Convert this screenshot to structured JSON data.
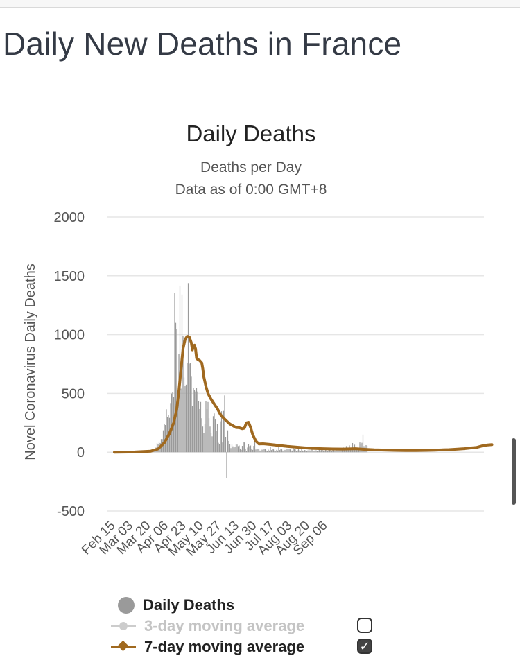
{
  "page": {
    "title": "Daily New Deaths in France"
  },
  "chart_data": {
    "type": "bar",
    "title": "Daily Deaths",
    "subtitle_lines": [
      "Deaths per Day",
      "Data as of 0:00 GMT+8"
    ],
    "xlabel": "",
    "ylabel": "Novel Coronavirus Daily Deaths",
    "ylim": [
      -500,
      2000
    ],
    "yticks": [
      2000,
      1500,
      1000,
      500,
      0,
      -500
    ],
    "grid": true,
    "x_tick_labels": [
      "Feb 15",
      "Mar 03",
      "Mar 20",
      "Apr 06",
      "Apr 23",
      "May 10",
      "May 27",
      "Jun 13",
      "Jun 30",
      "Jul 17",
      "Aug 03",
      "Aug 20",
      "Sep 06"
    ],
    "x_start": "Feb 15",
    "legend_position": "bottom",
    "colors": {
      "bars": "#9a9a9a",
      "avg3": "#c8c8c8",
      "avg7": "#a0691f",
      "grid": "#e6e6e6"
    },
    "series": [
      {
        "name": "Daily Deaths",
        "kind": "bar",
        "values": [
          0,
          0,
          0,
          0,
          0,
          0,
          0,
          0,
          0,
          0,
          0,
          0,
          0,
          0,
          0,
          0,
          0,
          0,
          0,
          0,
          0,
          0,
          0,
          0,
          0,
          0,
          2,
          0,
          2,
          1,
          3,
          3,
          5,
          4,
          8,
          10,
          15,
          21,
          12,
          30,
          40,
          78,
          71,
          91,
          78,
          112,
          112,
          186,
          240,
          231,
          365,
          299,
          319,
          292,
          418,
          499,
          509,
          471,
          1355,
          1100,
          1050,
          518,
          833,
          1417,
          541,
          1341,
          987,
          635,
          561,
          574,
          762,
          1438,
          753,
          761,
          642,
          395,
          547,
          531,
          516,
          544,
          516,
          437,
          367,
          427,
          289,
          218,
          166,
          243,
          437,
          367,
          427,
          289,
          218,
          166,
          135,
          306,
          330,
          278,
          178,
          243,
          80,
          70,
          263,
          348,
          83,
          351,
          483,
          131,
          -217,
          186,
          96,
          66,
          35,
          65,
          50,
          35,
          43,
          66,
          65,
          52,
          57,
          31,
          20,
          54,
          87,
          83,
          31,
          13,
          40,
          66,
          52,
          57,
          31,
          20,
          54,
          111,
          23,
          30,
          29,
          28,
          14,
          11,
          22,
          18,
          29,
          28,
          14,
          11,
          22,
          14,
          44,
          18,
          25,
          24,
          14,
          6,
          20,
          14,
          44,
          18,
          25,
          24,
          14,
          6,
          20,
          14,
          30,
          15,
          25,
          24,
          14,
          14,
          56,
          30,
          23,
          13,
          15,
          30,
          15,
          12,
          25,
          14,
          7,
          18,
          16,
          13,
          15,
          30,
          15,
          12,
          25,
          14,
          7,
          18,
          16,
          13,
          15,
          30,
          15,
          18,
          25,
          14,
          8,
          18,
          16,
          13,
          16,
          26,
          24,
          10,
          30,
          25,
          14,
          22,
          18,
          13,
          23,
          28,
          25,
          35,
          41,
          24,
          33,
          52,
          30,
          29,
          58,
          35,
          40,
          78,
          33,
          64,
          30,
          38,
          35,
          38,
          83,
          66,
          80,
          150,
          52,
          40,
          60,
          55
        ]
      },
      {
        "name": "3-day moving average",
        "kind": "line",
        "visible": false
      },
      {
        "name": "7-day moving average",
        "kind": "line",
        "points": [
          [
            0,
            0
          ],
          [
            20,
            2
          ],
          [
            35,
            9
          ],
          [
            42,
            28
          ],
          [
            48,
            80
          ],
          [
            53,
            160
          ],
          [
            57,
            250
          ],
          [
            60,
            370
          ],
          [
            62,
            520
          ],
          [
            64,
            700
          ],
          [
            66,
            880
          ],
          [
            68,
            960
          ],
          [
            70,
            985
          ],
          [
            72,
            980
          ],
          [
            74,
            930
          ],
          [
            75,
            870
          ],
          [
            76,
            905
          ],
          [
            77,
            910
          ],
          [
            78,
            880
          ],
          [
            79,
            800
          ],
          [
            80,
            790
          ],
          [
            82,
            780
          ],
          [
            84,
            760
          ],
          [
            85,
            710
          ],
          [
            86,
            640
          ],
          [
            88,
            560
          ],
          [
            90,
            500
          ],
          [
            93,
            450
          ],
          [
            96,
            410
          ],
          [
            99,
            370
          ],
          [
            102,
            320
          ],
          [
            105,
            290
          ],
          [
            108,
            265
          ],
          [
            111,
            240
          ],
          [
            114,
            225
          ],
          [
            117,
            210
          ],
          [
            120,
            208
          ],
          [
            123,
            200
          ],
          [
            125,
            205
          ],
          [
            127,
            250
          ],
          [
            129,
            255
          ],
          [
            131,
            210
          ],
          [
            133,
            150
          ],
          [
            136,
            95
          ],
          [
            139,
            70
          ],
          [
            143,
            72
          ],
          [
            150,
            66
          ],
          [
            158,
            58
          ],
          [
            166,
            50
          ],
          [
            174,
            44
          ],
          [
            182,
            38
          ],
          [
            190,
            33
          ],
          [
            200,
            30
          ],
          [
            210,
            28
          ],
          [
            220,
            27
          ],
          [
            232,
            30
          ],
          [
            240,
            25
          ],
          [
            250,
            20
          ],
          [
            260,
            18
          ],
          [
            270,
            16
          ],
          [
            280,
            14
          ],
          [
            290,
            15
          ],
          [
            300,
            16
          ],
          [
            308,
            17
          ],
          [
            316,
            20
          ],
          [
            322,
            22
          ],
          [
            330,
            26
          ],
          [
            336,
            30
          ],
          [
            342,
            36
          ],
          [
            348,
            40
          ],
          [
            354,
            55
          ],
          [
            359,
            62
          ],
          [
            363,
            65
          ]
        ]
      }
    ]
  },
  "legend": {
    "items": [
      {
        "label": "Daily Deaths",
        "checkbox": null
      },
      {
        "label": "3-day moving average",
        "checkbox": false
      },
      {
        "label": "7-day moving average",
        "checkbox": true
      }
    ]
  }
}
